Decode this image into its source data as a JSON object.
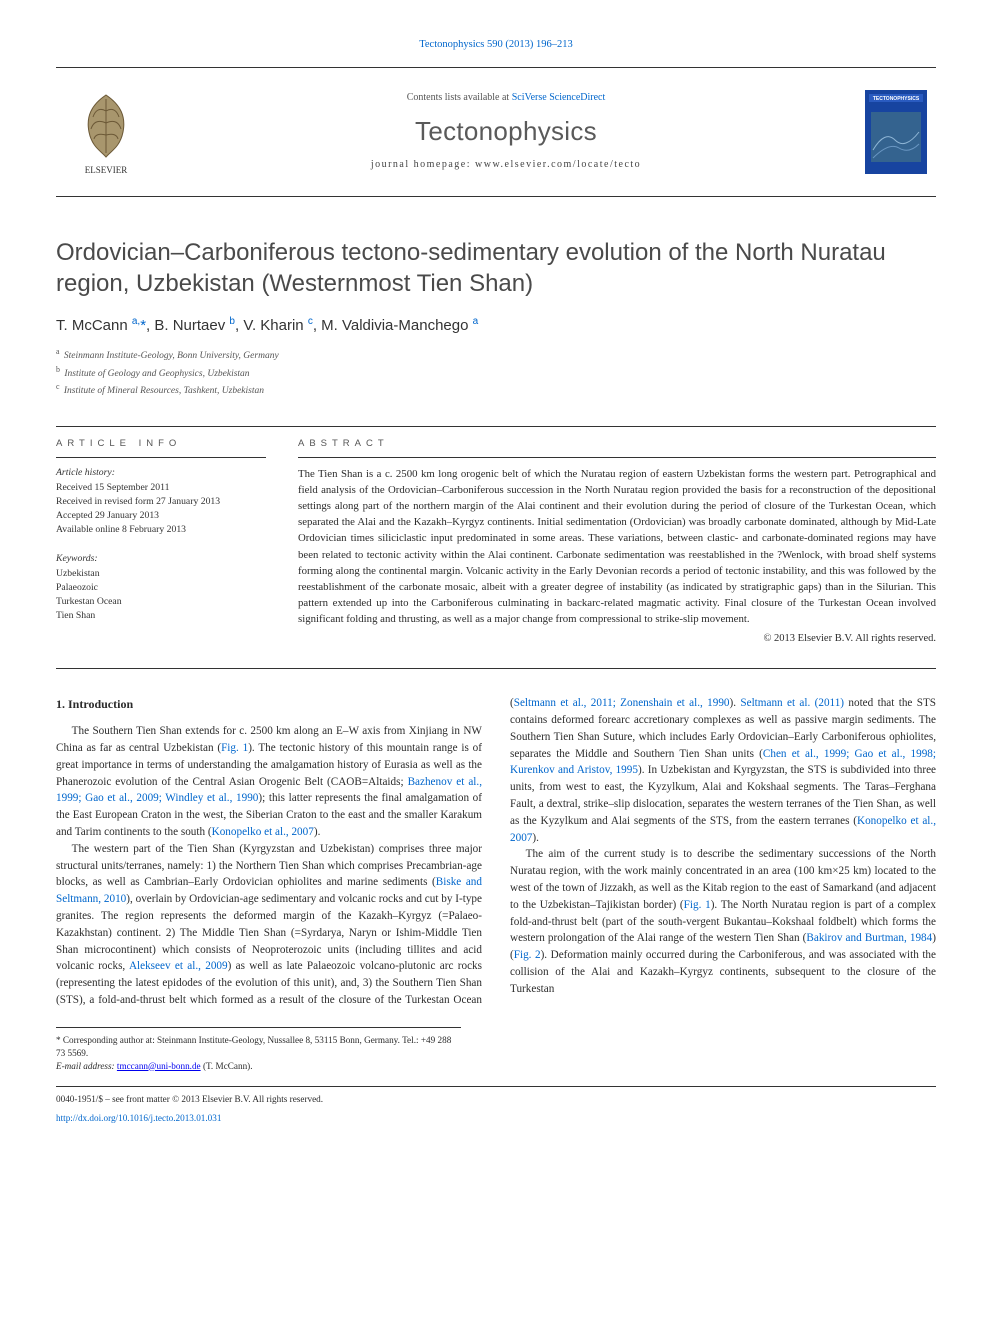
{
  "citation": "Tectonophysics 590 (2013) 196–213",
  "masthead": {
    "blurb_prefix": "Contents lists available at ",
    "blurb_link": "SciVerse ScienceDirect",
    "journal": "Tectonophysics",
    "homepage_label": "journal homepage: ",
    "homepage_url": "www.elsevier.com/locate/tecto",
    "publisher_logo_color": "#ff7500",
    "publisher_logo_letters": "ELSEVIER",
    "cover_bg": "#1744a0",
    "cover_title": "TECTONOPHYSICS"
  },
  "title": "Ordovician–Carboniferous tectono-sedimentary evolution of the North Nuratau region, Uzbekistan (Westernmost Tien Shan)",
  "authors_html": "T. McCann <sup>a,</sup><span class='corr'>*</span>, B. Nurtaev <sup>b</sup>, V. Kharin <sup>c</sup>, M. Valdivia-Manchego <sup>a</sup>",
  "affiliations": [
    {
      "mark": "a",
      "text": "Steinmann Institute-Geology, Bonn University, Germany"
    },
    {
      "mark": "b",
      "text": "Institute of Geology and Geophysics, Uzbekistan"
    },
    {
      "mark": "c",
      "text": "Institute of Mineral Resources, Tashkent, Uzbekistan"
    }
  ],
  "info": {
    "heading": "ARTICLE INFO",
    "history_label": "Article history:",
    "history": [
      "Received 15 September 2011",
      "Received in revised form 27 January 2013",
      "Accepted 29 January 2013",
      "Available online 8 February 2013"
    ],
    "keywords_label": "Keywords:",
    "keywords": [
      "Uzbekistan",
      "Palaeozoic",
      "Turkestan Ocean",
      "Tien Shan"
    ]
  },
  "abstract": {
    "heading": "ABSTRACT",
    "text": "The Tien Shan is a c. 2500 km long orogenic belt of which the Nuratau region of eastern Uzbekistan forms the western part. Petrographical and field analysis of the Ordovician–Carboniferous succession in the North Nuratau region provided the basis for a reconstruction of the depositional settings along part of the northern margin of the Alai continent and their evolution during the period of closure of the Turkestan Ocean, which separated the Alai and the Kazakh–Kyrgyz continents. Initial sedimentation (Ordovician) was broadly carbonate dominated, although by Mid-Late Ordovician times siliciclastic input predominated in some areas. These variations, between clastic- and carbonate-dominated regions may have been related to tectonic activity within the Alai continent. Carbonate sedimentation was reestablished in the ?Wenlock, with broad shelf systems forming along the continental margin. Volcanic activity in the Early Devonian records a period of tectonic instability, and this was followed by the reestablishment of the carbonate mosaic, albeit with a greater degree of instability (as indicated by stratigraphic gaps) than in the Silurian. This pattern extended up into the Carboniferous culminating in backarc-related magmatic activity. Final closure of the Turkestan Ocean involved significant folding and thrusting, as well as a major change from compressional to strike-slip movement.",
    "copyright": "© 2013 Elsevier B.V. All rights reserved."
  },
  "body": {
    "heading": "1. Introduction",
    "paragraphs": [
      "The Southern Tien Shan extends for c. 2500 km along an E–W axis from Xinjiang in NW China as far as central Uzbekistan (<a href='#'>Fig. 1</a>). The tectonic history of this mountain range is of great importance in terms of understanding the amalgamation history of Eurasia as well as the Phanerozoic evolution of the Central Asian Orogenic Belt (CAOB=Altaids; <a href='#'>Bazhenov et al., 1999; Gao et al., 2009; Windley et al., 1990</a>); this latter represents the final amalgamation of the East European Craton in the west, the Siberian Craton to the east and the smaller Karakum and Tarim continents to the south (<a href='#'>Konopelko et al., 2007</a>).",
      "The western part of the Tien Shan (Kyrgyzstan and Uzbekistan) comprises three major structural units/terranes, namely: 1) the Northern Tien Shan which comprises Precambrian-age blocks, as well as Cambrian–Early Ordovician ophiolites and marine sediments (<a href='#'>Biske and Seltmann, 2010</a>), overlain by Ordovician-age sedimentary and volcanic rocks and cut by I-type granites. The region represents the deformed margin of the Kazakh–Kyrgyz (=Palaeo-Kazakhstan) continent. 2) The Middle Tien Shan (=Syrdarya, Naryn or Ishim-Middle Tien Shan microcontinent) which consists of Neoproterozoic units (including tillites and acid volcanic rocks, <a href='#'>Alekseev et al., 2009</a>) as well as late Palaeozoic volcano-plutonic arc rocks (representing the latest epidodes of the evolution of this unit), and, 3) the Southern Tien Shan (STS), a fold-and-thrust belt which formed as a result of the closure of the Turkestan Ocean (<a href='#'>Seltmann et al., 2011; Zonenshain et al., 1990</a>). <a href='#'>Seltmann et al. (2011)</a> noted that the STS contains deformed forearc accretionary complexes as well as passive margin sediments. The Southern Tien Shan Suture, which includes Early Ordovician–Early Carboniferous ophiolites, separates the Middle and Southern Tien Shan units (<a href='#'>Chen et al., 1999; Gao et al., 1998; Kurenkov and Aristov, 1995</a>). In Uzbekistan and Kyrgyzstan, the STS is subdivided into three units, from west to east, the Kyzylkum, Alai and Kokshaal segments. The Taras–Ferghana Fault, a dextral, strike–slip dislocation, separates the western terranes of the Tien Shan, as well as the Kyzylkum and Alai segments of the STS, from the eastern terranes (<a href='#'>Konopelko et al., 2007</a>).",
      "The aim of the current study is to describe the sedimentary successions of the North Nuratau region, with the work mainly concentrated in an area (100 km×25 km) located to the west of the town of Jizzakh, as well as the Kitab region to the east of Samarkand (and adjacent to the Uzbekistan–Tajikistan border) (<a href='#'>Fig. 1</a>). The North Nuratau region is part of a complex fold-and-thrust belt (part of the south-vergent Bukantau–Kokshaal foldbelt) which forms the western prolongation of the Alai range of the western Tien Shan (<a href='#'>Bakirov and Burtman, 1984</a>) (<a href='#'>Fig. 2</a>). Deformation mainly occurred during the Carboniferous, and was associated with the collision of the Alai and Kazakh–Kyrgyz continents, subsequent to the closure of the Turkestan"
    ]
  },
  "footnotes": {
    "corr": "* Corresponding author at: Steinmann Institute-Geology, Nussallee 8, 53115 Bonn, Germany. Tel.: +49 288 73 5569.",
    "email_label": "E-mail address: ",
    "email": "tmccann@uni-bonn.de",
    "email_tail": " (T. McCann)."
  },
  "footer": {
    "line1": "0040-1951/$ – see front matter © 2013 Elsevier B.V. All rights reserved.",
    "doi": "http://dx.doi.org/10.1016/j.tecto.2013.01.031"
  },
  "links_color": "#0066cc"
}
